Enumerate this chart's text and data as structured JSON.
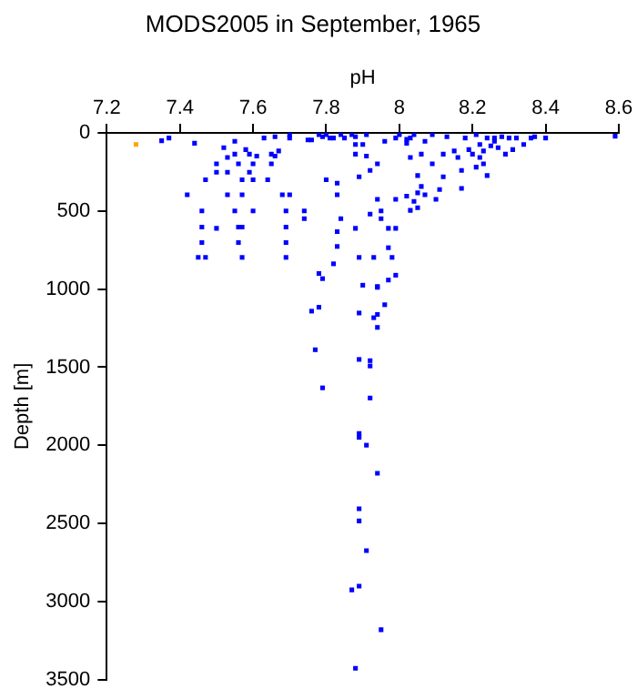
{
  "chart_data": {
    "type": "scatter",
    "title": "MODS2005 in September, 1965",
    "xlabel": "pH",
    "ylabel": "Depth [m]",
    "xlim": [
      7.2,
      8.6
    ],
    "xticks": [
      7.2,
      7.4,
      7.6,
      7.8,
      8,
      8.2,
      8.4,
      8.6
    ],
    "ylim": [
      3500,
      0
    ],
    "yticks": [
      0,
      500,
      1000,
      1500,
      2000,
      2500,
      3000,
      3500
    ],
    "grid": false,
    "legend": false,
    "marker": "square",
    "series": [
      {
        "color": "#ffa500",
        "x": [
          7.28
        ],
        "values": [
          74
        ]
      },
      {
        "color": "#0000ff",
        "x": [
          7.35,
          7.37,
          7.44,
          7.42,
          7.47,
          7.46,
          7.46,
          7.46,
          7.45,
          7.47,
          7.5,
          7.5,
          7.5,
          7.52,
          7.53,
          7.55,
          7.53,
          7.55,
          7.56,
          7.53,
          7.55,
          7.56,
          7.56,
          7.57,
          7.57,
          7.57,
          7.58,
          7.59,
          7.6,
          7.59,
          7.6,
          7.6,
          7.57,
          7.61,
          7.63,
          7.64,
          7.65,
          7.65,
          7.66,
          7.66,
          7.67,
          7.7,
          7.7,
          7.68,
          7.7,
          7.69,
          7.69,
          7.69,
          7.69,
          7.74,
          7.74,
          7.75,
          7.76,
          7.78,
          7.79,
          7.8,
          7.8,
          7.81,
          7.82,
          7.83,
          7.83,
          7.84,
          7.83,
          7.83,
          7.82,
          7.78,
          7.79,
          7.84,
          7.85,
          7.87,
          7.88,
          7.88,
          7.88,
          7.89,
          7.88,
          7.89,
          7.9,
          7.9,
          7.91,
          7.91,
          7.92,
          7.92,
          7.93,
          7.94,
          7.94,
          7.94,
          7.95,
          7.95,
          7.96,
          7.97,
          7.97,
          7.98,
          7.97,
          7.99,
          8,
          7.99,
          7.99,
          8.02,
          8.03,
          8.02,
          8.02,
          8.03,
          8.03,
          8.04,
          8.05,
          8.04,
          8.05,
          8.05,
          8.06,
          8.07,
          8.06,
          8.07,
          8.09,
          8.09,
          8.1,
          8.11,
          8.12,
          8.12,
          8.13,
          8.15,
          8.16,
          8.17,
          8.17,
          8.18,
          8.19,
          8.21,
          8.24,
          8.21,
          8.22,
          8.23,
          8.24,
          8.26,
          8.27,
          8.29,
          8.3,
          8.31,
          8.32,
          8.34,
          8.36,
          8.37,
          8.4,
          8.59,
          8.22,
          8.25,
          8.26,
          8.23,
          8.2,
          8.28,
          7.94,
          7.99,
          7.96,
          7.76,
          7.78,
          7.89,
          7.93,
          7.94,
          7.94,
          7.77,
          7.89,
          7.92,
          7.92,
          7.79,
          7.92,
          7.89,
          7.89,
          7.91,
          7.94,
          7.89,
          7.89,
          7.91,
          7.89,
          7.87,
          7.95,
          7.88
        ],
        "values": [
          50,
          33,
          66,
          396,
          300,
          500,
          603,
          702,
          797,
          797,
          611,
          198,
          252,
          95,
          157,
          54,
          252,
          136,
          198,
          396,
          500,
          603,
          702,
          797,
          396,
          300,
          107,
          136,
          198,
          252,
          300,
          500,
          603,
          149,
          33,
          300,
          198,
          136,
          149,
          25,
          116,
          12,
          33,
          396,
          396,
          500,
          603,
          702,
          797,
          500,
          549,
          45,
          45,
          12,
          25,
          300,
          12,
          33,
          33,
          322,
          396,
          549,
          632,
          727,
          838,
          900,
          933,
          12,
          33,
          12,
          74,
          136,
          25,
          281,
          611,
          797,
          975,
          74,
          12,
          149,
          240,
          520,
          797,
          983,
          198,
          425,
          500,
          549,
          54,
          611,
          735,
          797,
          942,
          33,
          12,
          611,
          425,
          41,
          33,
          66,
          405,
          496,
          157,
          438,
          384,
          12,
          273,
          479,
          343,
          396,
          136,
          54,
          12,
          198,
          425,
          363,
          281,
          136,
          25,
          116,
          157,
          355,
          240,
          33,
          107,
          12,
          33,
          219,
          157,
          116,
          273,
          54,
          95,
          136,
          33,
          107,
          33,
          74,
          33,
          25,
          33,
          21,
          74,
          83,
          33,
          198,
          136,
          25,
          989,
          911,
          1100,
          1141,
          1116,
          1153,
          1183,
          1162,
          1245,
          1388,
          1450,
          1458,
          1492,
          1632,
          1697,
          1924,
          1949,
          1999,
          2179,
          2406,
          2484,
          2674,
          2901,
          2925,
          3180,
          3427
        ]
      }
    ]
  }
}
